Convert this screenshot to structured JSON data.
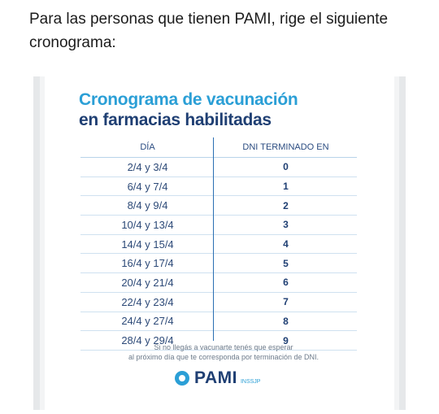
{
  "intro": "Para las personas que tienen PAMI, rige el siguiente cronograma:",
  "poster": {
    "title_line1": "Cronograma de vacunación",
    "title_line2": "en farmacias habilitadas",
    "col_day": "DÍA",
    "col_dni": "DNI TERMINADO EN",
    "rows": [
      {
        "day": "2/4 y 3/4",
        "dni": "0"
      },
      {
        "day": "6/4 y 7/4",
        "dni": "1"
      },
      {
        "day": "8/4 y 9/4",
        "dni": "2"
      },
      {
        "day": "10/4 y 13/4",
        "dni": "3"
      },
      {
        "day": "14/4 y 15/4",
        "dni": "4"
      },
      {
        "day": "16/4 y 17/4",
        "dni": "5"
      },
      {
        "day": "20/4 y 21/4",
        "dni": "6"
      },
      {
        "day": "22/4 y 23/4",
        "dni": "7"
      },
      {
        "day": "24/4 y 27/4",
        "dni": "8"
      },
      {
        "day": "28/4 y 29/4",
        "dni": "9"
      }
    ],
    "note_line1": "Si no llegás a vacunarte tenés que esperar",
    "note_line2": "al próximo día que te corresponda por terminación de DNI.",
    "brand": "PAMI",
    "brand_sub": "INSSJP",
    "colors": {
      "accent": "#2b9fd6",
      "navy": "#1f3f73"
    }
  }
}
